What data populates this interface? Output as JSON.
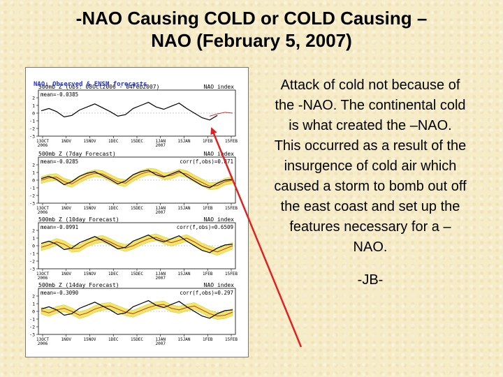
{
  "title": {
    "line1": "-NAO Causing COLD or COLD Causing –",
    "line2": "NAO (February 5, 2007)"
  },
  "body_text": {
    "paragraph": "Attack of cold not because of the -NAO. The continental cold is what created the –NAO. This occurred as a result of the insurgence of cold air which caused a storm to bomb out off the east coast and set up the features necessary for a –NAO.",
    "signature": "-JB-"
  },
  "colors": {
    "arrow": "#dd2222",
    "heading": "#2233cc",
    "spread": "#e8e030",
    "observed": "#000000",
    "forecast": "#cc3333"
  },
  "figure_heading": "NAO: Observed & ENSM forecasts",
  "chart_data": [
    {
      "type": "line",
      "panel_title": "500mb Z (Obs: 08Oct2006 - 04Feb2007)",
      "index_label": "NAO index",
      "stat_label": "mean=-0.0385",
      "corr_label": "",
      "x_ticks": [
        "13OCT 2006",
        "1NOV",
        "15NOV",
        "1DEC",
        "15DEC",
        "1JAN 2007",
        "15JAN",
        "1FEB",
        "15FEB"
      ],
      "ylim": [
        -3,
        3
      ],
      "y_ticks": [
        2,
        1,
        0,
        -1,
        -2,
        -3
      ],
      "series": [
        {
          "kind": "observed",
          "values": [
            0.3,
            0.6,
            0.2,
            -0.5,
            -0.3,
            0.4,
            0.8,
            1.2,
            0.7,
            0.2,
            -0.4,
            -0.2,
            0.6,
            1.0,
            1.4,
            0.8,
            0.5,
            0.9,
            1.3,
            0.6,
            0.0,
            -0.6,
            -0.9,
            -0.3,
            null,
            null
          ]
        },
        {
          "kind": "forecast",
          "values": [
            null,
            null,
            null,
            null,
            null,
            null,
            null,
            null,
            null,
            null,
            null,
            null,
            null,
            null,
            null,
            null,
            null,
            null,
            null,
            null,
            null,
            null,
            -0.4,
            -0.1,
            0.1,
            0.0
          ]
        }
      ]
    },
    {
      "type": "line",
      "panel_title": "500mb Z (7day Forecast)",
      "index_label": "NAO index",
      "stat_label": "mean=-0.0285",
      "corr_label": "corr(f,obs)=0.871",
      "x_ticks": [
        "13OCT 2006",
        "1NOV",
        "15NOV",
        "1DEC",
        "15DEC",
        "1JAN 2007",
        "15JAN",
        "1FEB",
        "15FEB"
      ],
      "ylim": [
        -3,
        3
      ],
      "y_ticks": [
        2,
        1,
        0,
        -1,
        -2,
        -3
      ],
      "series": [
        {
          "kind": "observed",
          "values": [
            0.2,
            0.5,
            0.1,
            -0.6,
            -0.2,
            0.5,
            0.9,
            1.1,
            0.6,
            0.1,
            -0.5,
            -0.1,
            0.7,
            1.1,
            1.3,
            0.7,
            0.4,
            0.8,
            1.2,
            0.5,
            -0.1,
            -0.7,
            -1.0,
            -0.4,
            0.0,
            0.1
          ]
        },
        {
          "kind": "forecast",
          "values": [
            0.0,
            0.3,
            0.4,
            -0.2,
            -0.5,
            0.1,
            0.6,
            0.9,
            0.8,
            0.3,
            -0.2,
            -0.4,
            0.3,
            0.8,
            1.1,
            1.0,
            0.5,
            0.6,
            1.0,
            0.8,
            0.2,
            -0.3,
            -0.8,
            -0.7,
            -0.2,
            0.0
          ]
        }
      ]
    },
    {
      "type": "line",
      "panel_title": "500mb Z (10day Forecast)",
      "index_label": "NAO index",
      "stat_label": "mean=-0.0991",
      "corr_label": "corr(f,obs)=0.6509",
      "x_ticks": [
        "13OCT 2006",
        "1NOV",
        "15NOV",
        "1DEC",
        "15DEC",
        "1JAN 2007",
        "15JAN",
        "1FEB",
        "15FEB"
      ],
      "ylim": [
        -3,
        3
      ],
      "y_ticks": [
        2,
        1,
        0,
        -1,
        -2,
        -3
      ],
      "series": [
        {
          "kind": "observed",
          "values": [
            0.3,
            0.6,
            0.2,
            -0.5,
            -0.3,
            0.4,
            0.8,
            1.2,
            0.7,
            0.2,
            -0.4,
            -0.2,
            0.6,
            1.0,
            1.4,
            0.8,
            0.5,
            0.9,
            1.3,
            0.6,
            0.0,
            -0.6,
            -0.9,
            -0.3,
            0.1,
            0.2
          ]
        },
        {
          "kind": "forecast",
          "values": [
            -0.2,
            0.1,
            0.5,
            0.2,
            -0.4,
            -0.3,
            0.3,
            0.7,
            0.9,
            0.5,
            0.0,
            -0.3,
            0.0,
            0.5,
            0.9,
            1.1,
            0.7,
            0.4,
            0.7,
            1.0,
            0.5,
            -0.1,
            -0.5,
            -0.8,
            -0.4,
            0.0
          ]
        }
      ]
    },
    {
      "type": "line",
      "panel_title": "500mb Z (14day Forecast)",
      "index_label": "NAO index",
      "stat_label": "mean=-0.3090",
      "corr_label": "corr(f,obs)=0.297",
      "x_ticks": [
        "13OCT 2006",
        "1NOV",
        "15NOV",
        "1DEC",
        "15DEC",
        "1JAN 2007",
        "15JAN",
        "1FEB",
        "15FEB"
      ],
      "ylim": [
        -3,
        3
      ],
      "y_ticks": [
        2,
        1,
        0,
        -1,
        -2,
        -3
      ],
      "series": [
        {
          "kind": "observed",
          "values": [
            0.3,
            0.6,
            0.2,
            -0.5,
            -0.3,
            0.4,
            0.8,
            1.2,
            0.7,
            0.2,
            -0.4,
            -0.2,
            0.6,
            1.0,
            1.4,
            0.8,
            0.5,
            0.9,
            1.3,
            0.6,
            0.0,
            -0.6,
            -0.9,
            -0.3,
            0.1,
            0.2
          ]
        },
        {
          "kind": "forecast",
          "values": [
            0.1,
            -0.2,
            0.2,
            0.4,
            0.0,
            -0.5,
            -0.2,
            0.3,
            0.6,
            0.7,
            0.3,
            -0.1,
            -0.3,
            0.1,
            0.5,
            0.8,
            0.9,
            0.4,
            0.2,
            0.5,
            0.7,
            0.2,
            -0.3,
            -0.6,
            -0.5,
            -0.1
          ]
        }
      ]
    }
  ]
}
